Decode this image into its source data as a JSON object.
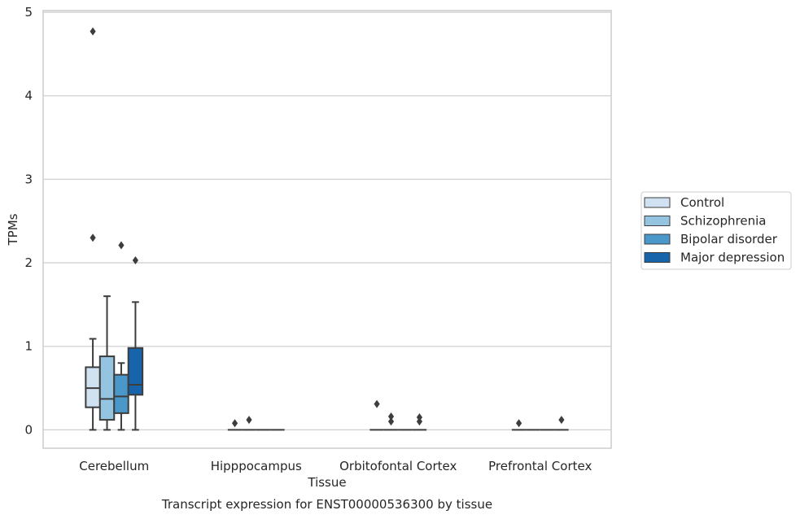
{
  "chart_data": {
    "type": "box",
    "xlabel": "Tissue",
    "ylabel": "TPMs",
    "caption": "Transcript expression for ENST00000536300 by tissue",
    "ylim": [
      -0.22,
      5.02
    ],
    "yticks": [
      0,
      1,
      2,
      3,
      4,
      5
    ],
    "grid": true,
    "legend_position": "right",
    "categories": [
      "Cerebellum",
      "Hipppocampus",
      "Orbitofontal Cortex",
      "Prefrontal Cortex"
    ],
    "series": [
      {
        "name": "Control",
        "color": "#d0e1f2",
        "boxes": [
          {
            "whisker_low": 0,
            "q1": 0.27,
            "median": 0.5,
            "q3": 0.75,
            "whisker_high": 1.09,
            "outliers": [
              2.3,
              4.77
            ]
          },
          {
            "whisker_low": 0,
            "q1": 0,
            "median": 0,
            "q3": 0,
            "whisker_high": 0,
            "outliers": [
              0.08
            ]
          },
          {
            "whisker_low": 0,
            "q1": 0,
            "median": 0,
            "q3": 0,
            "whisker_high": 0,
            "outliers": [
              0.31
            ]
          },
          {
            "whisker_low": 0,
            "q1": 0,
            "median": 0,
            "q3": 0,
            "whisker_high": 0,
            "outliers": [
              0.08
            ]
          }
        ]
      },
      {
        "name": "Schizophrenia",
        "color": "#94c4df",
        "boxes": [
          {
            "whisker_low": 0,
            "q1": 0.12,
            "median": 0.37,
            "q3": 0.88,
            "whisker_high": 1.6,
            "outliers": []
          },
          {
            "whisker_low": 0,
            "q1": 0,
            "median": 0,
            "q3": 0,
            "whisker_high": 0,
            "outliers": [
              0.12
            ]
          },
          {
            "whisker_low": 0,
            "q1": 0,
            "median": 0,
            "q3": 0,
            "whisker_high": 0,
            "outliers": [
              0.1,
              0.16
            ]
          },
          {
            "whisker_low": 0,
            "q1": 0,
            "median": 0,
            "q3": 0,
            "whisker_high": 0,
            "outliers": []
          }
        ]
      },
      {
        "name": "Bipolar disorder",
        "color": "#4a98c9",
        "boxes": [
          {
            "whisker_low": 0,
            "q1": 0.2,
            "median": 0.4,
            "q3": 0.66,
            "whisker_high": 0.8,
            "outliers": [
              2.21
            ]
          },
          {
            "whisker_low": 0,
            "q1": 0,
            "median": 0,
            "q3": 0,
            "whisker_high": 0,
            "outliers": []
          },
          {
            "whisker_low": 0,
            "q1": 0,
            "median": 0,
            "q3": 0,
            "whisker_high": 0,
            "outliers": []
          },
          {
            "whisker_low": 0,
            "q1": 0,
            "median": 0,
            "q3": 0,
            "whisker_high": 0,
            "outliers": []
          }
        ]
      },
      {
        "name": "Major depression",
        "color": "#1764ab",
        "boxes": [
          {
            "whisker_low": 0,
            "q1": 0.42,
            "median": 0.54,
            "q3": 0.98,
            "whisker_high": 1.53,
            "outliers": [
              2.03
            ]
          },
          {
            "whisker_low": 0,
            "q1": 0,
            "median": 0,
            "q3": 0,
            "whisker_high": 0,
            "outliers": []
          },
          {
            "whisker_low": 0,
            "q1": 0,
            "median": 0,
            "q3": 0,
            "whisker_high": 0,
            "outliers": [
              0.1,
              0.15
            ]
          },
          {
            "whisker_low": 0,
            "q1": 0,
            "median": 0,
            "q3": 0,
            "whisker_high": 0,
            "outliers": [
              0.12
            ]
          }
        ]
      }
    ]
  }
}
